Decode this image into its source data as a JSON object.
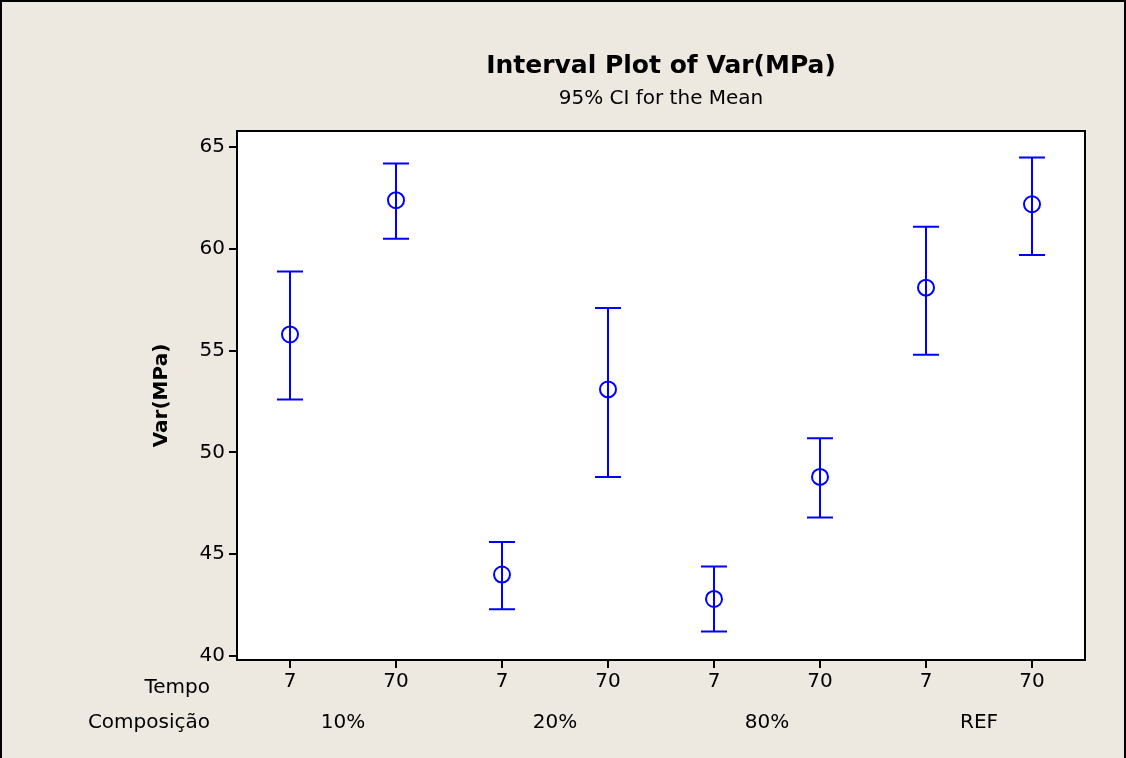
{
  "chart_data": {
    "type": "scatter",
    "title": "Interval Plot of Var(MPa)",
    "subtitle": "95% CI for the Mean",
    "ylabel": "Var(MPa)",
    "categories": [
      "7",
      "70",
      "7",
      "70",
      "7",
      "70",
      "7",
      "70"
    ],
    "series": [
      {
        "color": "#0000ff",
        "values": [
          55.8,
          62.4,
          44.0,
          53.1,
          42.8,
          48.8,
          58.1,
          62.2
        ],
        "errors": [
          [
            52.6,
            58.9
          ],
          [
            60.5,
            64.2
          ],
          [
            42.3,
            45.6
          ],
          [
            48.8,
            57.1
          ],
          [
            41.2,
            44.4
          ],
          [
            46.8,
            50.7
          ],
          [
            54.8,
            61.1
          ],
          [
            59.7,
            64.5
          ]
        ]
      }
    ],
    "ylim": [
      39.8,
      65.8
    ],
    "yticks": [
      40,
      45,
      50,
      55,
      60,
      65
    ],
    "grid": false,
    "legend": false,
    "marker": "circle",
    "annotations": [
      "Tempo",
      "Composição",
      "10%",
      "20%",
      "80%",
      "REF"
    ]
  }
}
